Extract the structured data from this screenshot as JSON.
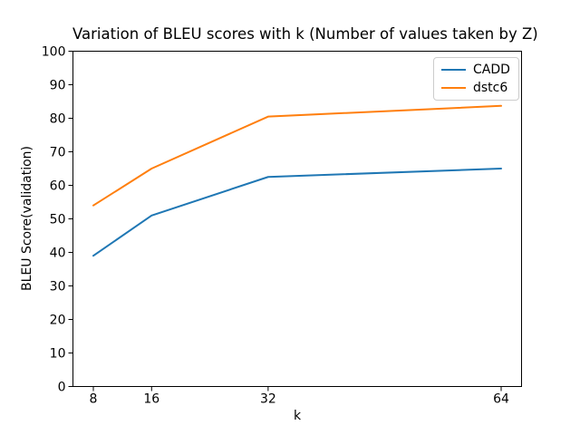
{
  "chart_data": {
    "type": "line",
    "title": "Variation of BLEU scores with k (Number of values taken by Z)",
    "xlabel": "k",
    "ylabel": "BLEU Score(validation)",
    "x": [
      8,
      16,
      32,
      64
    ],
    "series": [
      {
        "name": "CADD",
        "color": "#1f77b4",
        "values": [
          39,
          51,
          62.5,
          65
        ]
      },
      {
        "name": "dstc6",
        "color": "#ff7f0e",
        "values": [
          54,
          65,
          80.5,
          83.7
        ]
      }
    ],
    "xlim": [
      5.2,
      66.8
    ],
    "ylim": [
      0,
      100
    ],
    "xticks": [
      8,
      16,
      32,
      64
    ],
    "yticks": [
      0,
      10,
      20,
      30,
      40,
      50,
      60,
      70,
      80,
      90,
      100
    ],
    "grid": false,
    "legend": {
      "position": "upper right",
      "entries": [
        "CADD",
        "dstc6"
      ]
    },
    "axis_color": "#000000",
    "background_color": "#ffffff"
  }
}
